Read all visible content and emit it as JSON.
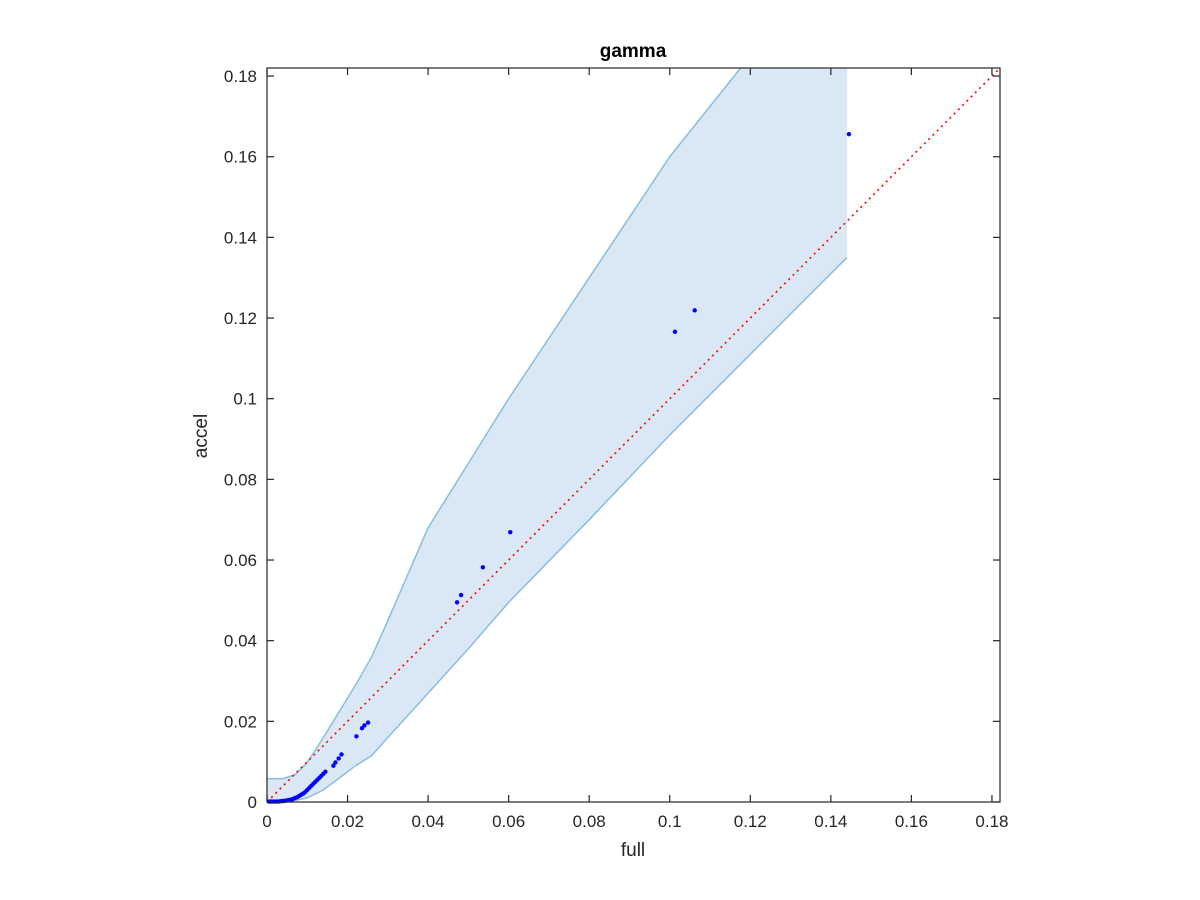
{
  "chart_data": {
    "type": "scatter",
    "title": "gamma",
    "xlabel": "full",
    "ylabel": "accel",
    "xlim": [
      0,
      0.182
    ],
    "ylim": [
      0,
      0.182
    ],
    "xticks": [
      0,
      0.02,
      0.04,
      0.06,
      0.08,
      0.1,
      0.12,
      0.14,
      0.16,
      0.18
    ],
    "xtick_labels": [
      "0",
      "0.02",
      "0.04",
      "0.06",
      "0.08",
      "0.1",
      "0.12",
      "0.14",
      "0.16",
      "0.18"
    ],
    "yticks": [
      0,
      0.02,
      0.04,
      0.06,
      0.08,
      0.1,
      0.12,
      0.14,
      0.16,
      0.18
    ],
    "ytick_labels": [
      "0",
      "0.02",
      "0.04",
      "0.06",
      "0.08",
      "0.1",
      "0.12",
      "0.14",
      "0.16",
      "0.18"
    ],
    "grid": false,
    "colors": {
      "points": "#0000ff",
      "band_fill": "#d9e8f4",
      "band_edge": "#88bde0",
      "reference_line": "#ff0000",
      "axes": "#262626"
    },
    "reference_line": {
      "style": "dotted",
      "x": [
        0,
        0.182
      ],
      "y": [
        0,
        0.182
      ]
    },
    "confidence_band": {
      "upper": [
        [
          0,
          0.0058
        ],
        [
          0.004,
          0.0058
        ],
        [
          0.007,
          0.0068
        ],
        [
          0.01,
          0.0098
        ],
        [
          0.014,
          0.016
        ],
        [
          0.018,
          0.0225
        ],
        [
          0.022,
          0.029
        ],
        [
          0.026,
          0.036
        ],
        [
          0.03,
          0.045
        ],
        [
          0.04,
          0.068
        ],
        [
          0.05,
          0.084
        ],
        [
          0.06,
          0.1
        ],
        [
          0.08,
          0.13
        ],
        [
          0.1,
          0.16
        ],
        [
          0.12,
          0.185
        ],
        [
          0.13,
          0.2
        ],
        [
          0.144,
          0.22
        ]
      ],
      "lower": [
        [
          0,
          0
        ],
        [
          0.006,
          0.0002
        ],
        [
          0.01,
          0.001
        ],
        [
          0.014,
          0.003
        ],
        [
          0.018,
          0.006
        ],
        [
          0.022,
          0.009
        ],
        [
          0.026,
          0.0115
        ],
        [
          0.03,
          0.016
        ],
        [
          0.04,
          0.027
        ],
        [
          0.05,
          0.038
        ],
        [
          0.06,
          0.0495
        ],
        [
          0.08,
          0.07
        ],
        [
          0.1,
          0.091
        ],
        [
          0.12,
          0.111
        ],
        [
          0.144,
          0.135
        ]
      ]
    },
    "series": [
      {
        "x": [
          0.0005,
          0.001,
          0.0015,
          0.002,
          0.0025,
          0.003,
          0.0035,
          0.004,
          0.0045,
          0.005,
          0.0055,
          0.006,
          0.0065,
          0.007,
          0.0075,
          0.008,
          0.0085,
          0.009,
          0.0095,
          0.01,
          0.0105,
          0.011,
          0.0115,
          0.012,
          0.0125,
          0.013,
          0.0135,
          0.014,
          0.0145,
          0.0165,
          0.017,
          0.0178,
          0.0185,
          0.0222,
          0.0236,
          0.0242,
          0.0251,
          0.0472,
          0.0482,
          0.0536,
          0.0604,
          0.1013,
          0.1062,
          0.1445
        ],
        "y": [
          0.0001,
          0.0001,
          0.0001,
          0.0001,
          0.0001,
          0.00015,
          0.0002,
          0.00025,
          0.0003,
          0.0004,
          0.0005,
          0.0006,
          0.0008,
          0.001,
          0.0012,
          0.0015,
          0.0018,
          0.0021,
          0.0025,
          0.003,
          0.0035,
          0.004,
          0.0045,
          0.005,
          0.0055,
          0.006,
          0.0065,
          0.007,
          0.0075,
          0.009,
          0.0098,
          0.0108,
          0.0118,
          0.0163,
          0.0183,
          0.019,
          0.0197,
          0.0495,
          0.0513,
          0.0582,
          0.0669,
          0.1166,
          0.1219,
          0.1656
        ]
      }
    ]
  }
}
